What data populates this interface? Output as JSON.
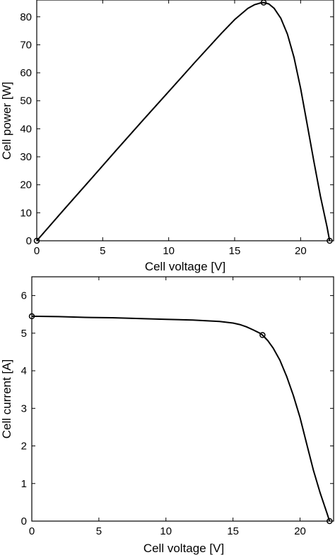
{
  "chart_data": [
    {
      "type": "line",
      "title": "",
      "xlabel": "Cell voltage [V]",
      "ylabel": "Cell power [W]",
      "xlim": [
        0,
        22.5
      ],
      "ylim": [
        0,
        86
      ],
      "xticks": [
        0,
        5,
        10,
        15,
        20
      ],
      "yticks": [
        0,
        10,
        20,
        30,
        40,
        50,
        60,
        70,
        80
      ],
      "grid": false,
      "line_color": "#000000",
      "series": [
        {
          "x": [
            0,
            2,
            4,
            6,
            8,
            10,
            12,
            14,
            15,
            16,
            16.5,
            17.0,
            17.2,
            17.6,
            18.0,
            18.5,
            19.0,
            19.5,
            20.0,
            20.5,
            21.0,
            21.5,
            22.0,
            22.2
          ],
          "y": [
            0,
            10.8,
            21.5,
            32.2,
            42.8,
            53.3,
            63.8,
            74.1,
            79.0,
            83.0,
            84.3,
            85.0,
            85.1,
            84.6,
            83.0,
            79.5,
            73.8,
            65.5,
            54.5,
            41.5,
            28.5,
            16.0,
            5.0,
            0
          ]
        }
      ],
      "markers": [
        {
          "x": 0,
          "y": 0
        },
        {
          "x": 17.2,
          "y": 85.1
        },
        {
          "x": 22.2,
          "y": 0
        }
      ]
    },
    {
      "type": "line",
      "title": "",
      "xlabel": "Cell voltage [V]",
      "ylabel": "Cell current  [A]",
      "xlim": [
        0,
        22.5
      ],
      "ylim": [
        0,
        6.5
      ],
      "xticks": [
        0,
        5,
        10,
        15,
        20
      ],
      "yticks": [
        0,
        1,
        2,
        3,
        4,
        5,
        6
      ],
      "grid": false,
      "line_color": "#000000",
      "series": [
        {
          "x": [
            0,
            2,
            4,
            6,
            8,
            10,
            12,
            14,
            15,
            15.5,
            16,
            16.5,
            17.0,
            17.2,
            17.6,
            18.0,
            18.5,
            19.0,
            19.5,
            20.0,
            20.5,
            21.0,
            21.5,
            22.0,
            22.2
          ],
          "y": [
            5.45,
            5.44,
            5.42,
            5.41,
            5.39,
            5.37,
            5.35,
            5.31,
            5.27,
            5.23,
            5.17,
            5.09,
            5.0,
            4.95,
            4.8,
            4.6,
            4.28,
            3.85,
            3.34,
            2.75,
            2.05,
            1.35,
            0.75,
            0.22,
            0
          ]
        }
      ],
      "markers": [
        {
          "x": 0,
          "y": 5.45
        },
        {
          "x": 17.2,
          "y": 4.95
        },
        {
          "x": 22.2,
          "y": 0
        }
      ]
    }
  ]
}
